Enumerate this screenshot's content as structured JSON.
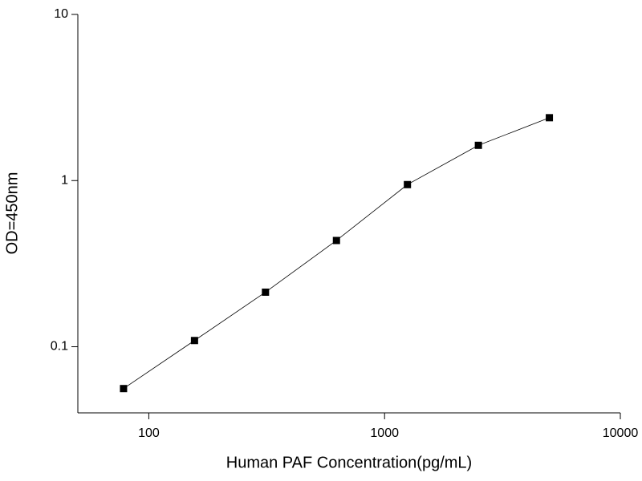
{
  "chart_data": {
    "type": "line",
    "xlabel": "Human PAF Concentration(pg/mL)",
    "ylabel": "OD=450nm",
    "x": [
      78.125,
      156.25,
      312.5,
      625,
      1250,
      2500,
      5000
    ],
    "series": [
      {
        "color": "#000000",
        "values": [
          0.056,
          0.109,
          0.213,
          0.436,
          0.946,
          1.63,
          2.39
        ]
      }
    ],
    "xlim": [
      50,
      10000
    ],
    "ylim": [
      0.04,
      10
    ],
    "xticks": [
      100,
      1000,
      10000
    ],
    "yticks": [
      0.1,
      1,
      10
    ],
    "xscale": "log",
    "yscale": "log",
    "grid": false
  }
}
